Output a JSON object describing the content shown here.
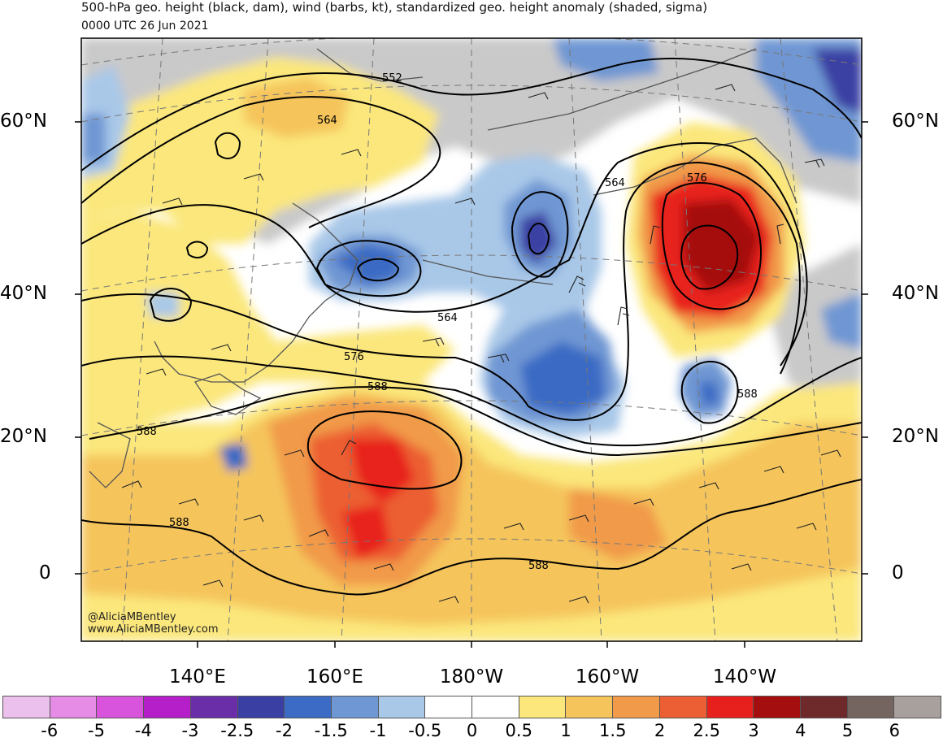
{
  "header": {
    "title": "500-hPa geo. height (black, dam), wind (barbs, kt), standardized geo. height anomaly (shaded, sigma)",
    "valid_time": "0000 UTC 26 Jun 2021"
  },
  "axes": {
    "lat_labels": [
      "60°N",
      "40°N",
      "20°N",
      "0"
    ],
    "lon_labels": [
      "140°E",
      "160°E",
      "180°W",
      "160°W",
      "140°W"
    ]
  },
  "contour_labels": [
    "552",
    "564",
    "564",
    "576",
    "588",
    "564",
    "576",
    "588",
    "588",
    "588",
    "588"
  ],
  "credits": {
    "handle": "@AliciaMBentley",
    "site": "www.AliciaMBentley.com"
  },
  "colorbar": {
    "labels": [
      "-6",
      "-5",
      "-4",
      "-3",
      "-2.5",
      "-2",
      "-1.5",
      "-1",
      "-0.5",
      "0",
      "0.5",
      "1",
      "1.5",
      "2",
      "2.5",
      "3",
      "4",
      "5",
      "6"
    ],
    "colors": [
      "#ecc0ec",
      "#e68be6",
      "#d954dc",
      "#b51fc9",
      "#6a2fa8",
      "#3a3fa3",
      "#3b6bc4",
      "#6f97d3",
      "#a9c8e8",
      "#ffffff",
      "#ffffff",
      "#fbe77c",
      "#f5c55c",
      "#f19a49",
      "#ec5e33",
      "#e8201d",
      "#a50e0e",
      "#6e2a2a",
      "#756561",
      "#a8a09c"
    ]
  }
}
